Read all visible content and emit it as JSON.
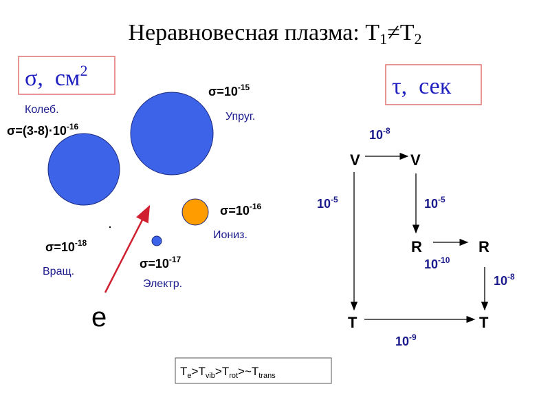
{
  "title": {
    "text1": "Неравновесная плазма: T",
    "sub1": "1",
    "text2": "≠T",
    "sub2": "2"
  },
  "cross_section_box": {
    "text": "σ,  см",
    "sup": "2"
  },
  "time_box": {
    "text": "τ,  сек"
  },
  "cross_sections": [
    {
      "name": "Колеб.",
      "value": "σ=(3-8)·10",
      "exp": "-16"
    },
    {
      "name": "Упруг.",
      "value": "σ=10",
      "exp": "-15"
    },
    {
      "name": "Иониз.",
      "value": "σ=10",
      "exp": "-16"
    },
    {
      "name": "Вращ.",
      "value": "σ=10",
      "exp": "-18"
    },
    {
      "name": "Электр.",
      "value": "σ=10",
      "exp": "-17"
    }
  ],
  "electron": "e",
  "nodes": [
    "V",
    "V",
    "R",
    "R",
    "T",
    "T"
  ],
  "transitions": [
    {
      "base": "10",
      "exp": "-8"
    },
    {
      "base": "10",
      "exp": "-5"
    },
    {
      "base": "10",
      "exp": "-5"
    },
    {
      "base": "10",
      "exp": "-10"
    },
    {
      "base": "10",
      "exp": "-8"
    },
    {
      "base": "10",
      "exp": "-9"
    }
  ],
  "inequality": [
    "T",
    "e",
    ">T",
    "vib",
    ">T",
    "rot",
    ">~T",
    "trans"
  ]
}
